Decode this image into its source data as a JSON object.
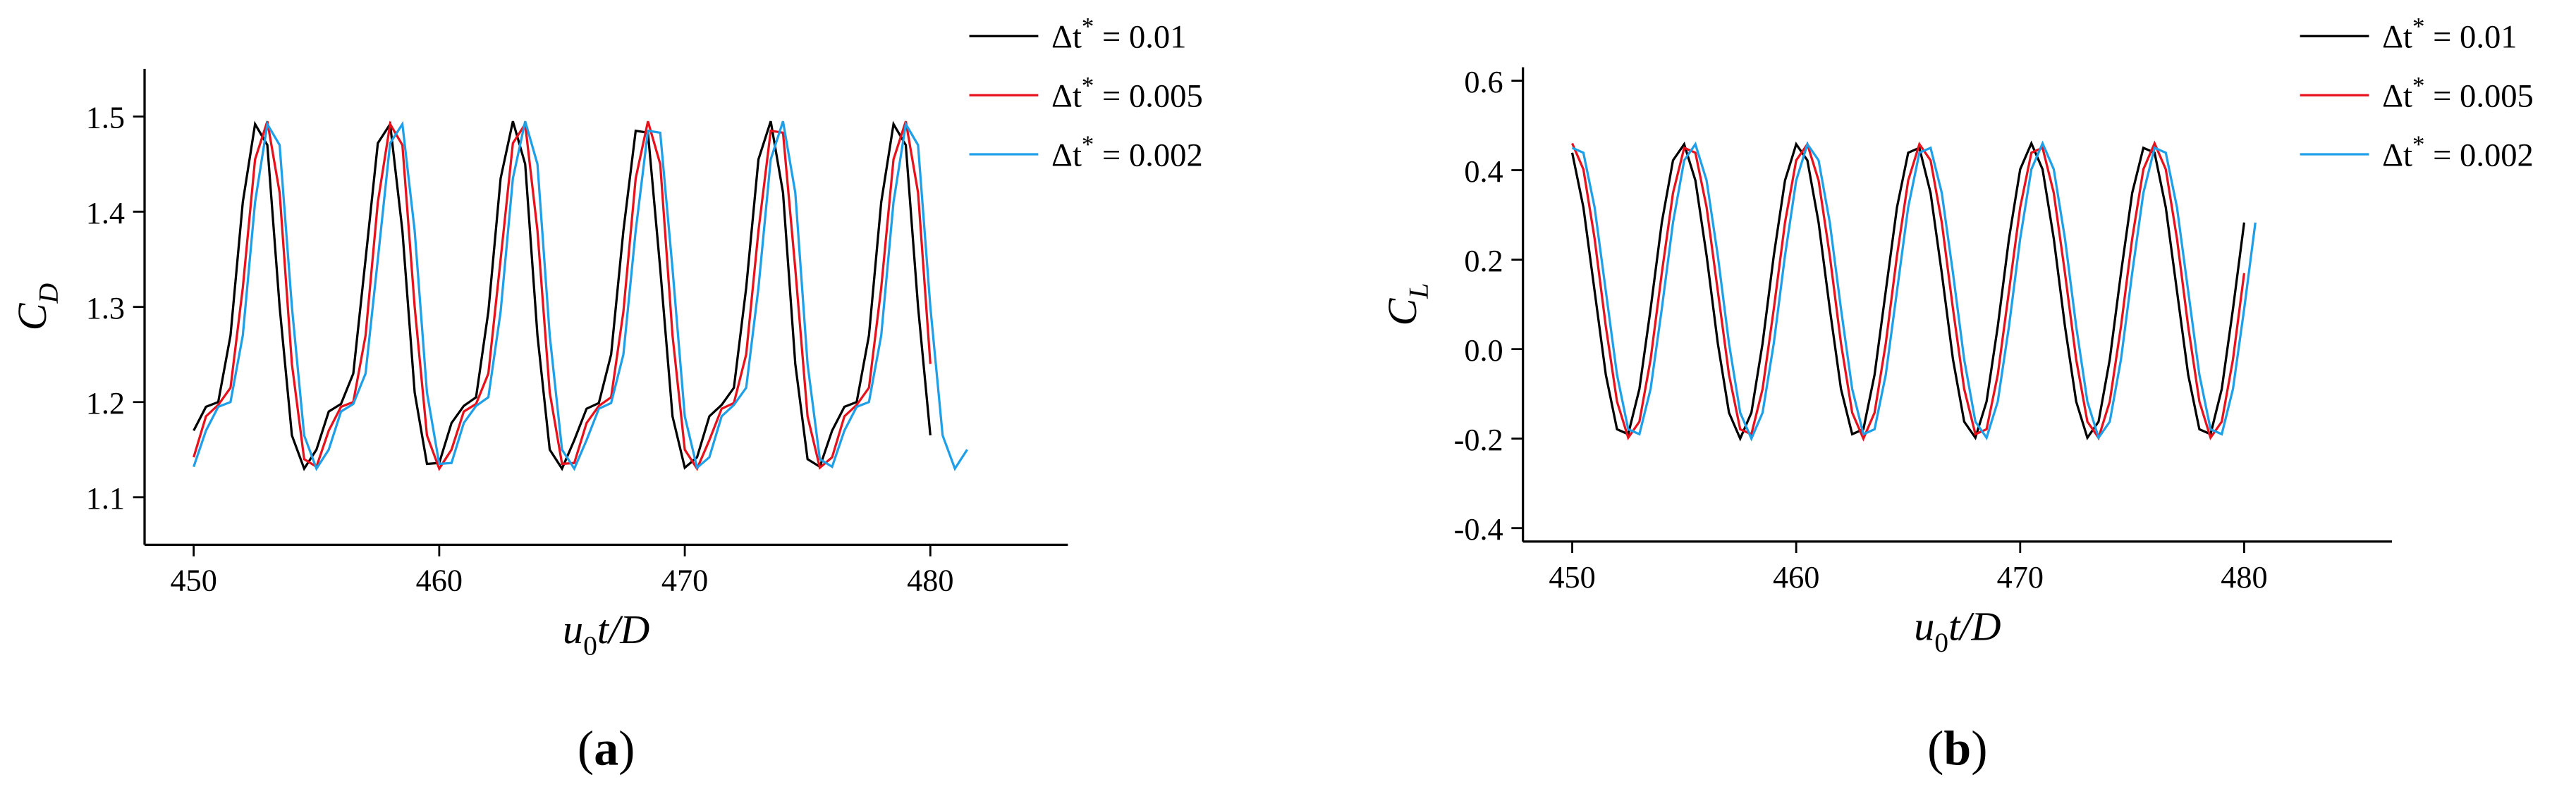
{
  "chart_data": [
    {
      "type": "line",
      "panel_label": "(a)",
      "xlabel": {
        "symbol": "u",
        "subscript": "0",
        "rest": "t/D"
      },
      "ylabel": {
        "symbol": "C",
        "subscript": "D"
      },
      "xlim": [
        448,
        485.6
      ],
      "ylim": [
        1.05,
        1.55
      ],
      "xticks": [
        450,
        460,
        470,
        480
      ],
      "yticks": [
        1.1,
        1.2,
        1.3,
        1.4,
        1.5
      ],
      "legend_position": "upper right",
      "x": [
        450,
        450.5,
        451,
        451.5,
        452,
        452.5,
        453,
        453.5,
        454,
        454.5,
        455,
        455.5,
        456,
        456.5,
        457,
        457.5,
        458,
        458.5,
        459,
        459.5,
        460,
        460.5,
        461,
        461.5,
        462,
        462.5,
        463,
        463.5,
        464,
        464.5,
        465,
        465.5,
        466,
        466.5,
        467,
        467.5,
        468,
        468.5,
        469,
        469.5,
        470,
        470.5,
        471,
        471.5,
        472,
        472.5,
        473,
        473.5,
        474,
        474.5,
        475,
        475.5,
        476,
        476.5,
        477,
        477.5,
        478,
        478.5,
        479,
        479.5,
        480,
        480.5,
        481,
        481.5
      ],
      "series": [
        {
          "name": "Δt* = 0.01",
          "color": "#000000",
          "values": [
            1.17,
            1.195,
            1.2,
            1.27,
            1.41,
            1.492,
            1.47,
            1.3,
            1.165,
            1.13,
            1.15,
            1.19,
            1.198,
            1.23,
            1.35,
            1.472,
            1.492,
            1.38,
            1.21,
            1.135,
            1.136,
            1.178,
            1.196,
            1.205,
            1.295,
            1.435,
            1.495,
            1.45,
            1.27,
            1.15,
            1.13,
            1.16,
            1.193,
            1.199,
            1.25,
            1.38,
            1.485,
            1.483,
            1.34,
            1.185,
            1.131,
            1.142,
            1.185,
            1.197,
            1.215,
            1.32,
            1.455,
            1.495,
            1.42,
            1.24,
            1.14,
            1.132,
            1.17,
            1.195,
            1.2,
            1.27,
            1.41,
            1.492,
            1.47,
            1.3,
            1.165,
            null,
            null,
            null
          ]
        },
        {
          "name": "Δt* = 0.005",
          "color": "#e8101a",
          "values": [
            1.142,
            1.185,
            1.197,
            1.215,
            1.32,
            1.455,
            1.495,
            1.42,
            1.24,
            1.14,
            1.132,
            1.17,
            1.195,
            1.2,
            1.27,
            1.41,
            1.492,
            1.47,
            1.3,
            1.165,
            1.13,
            1.15,
            1.19,
            1.198,
            1.23,
            1.35,
            1.472,
            1.492,
            1.38,
            1.21,
            1.135,
            1.136,
            1.178,
            1.196,
            1.205,
            1.295,
            1.435,
            1.495,
            1.45,
            1.27,
            1.15,
            1.13,
            1.16,
            1.193,
            1.199,
            1.25,
            1.38,
            1.485,
            1.483,
            1.34,
            1.185,
            1.131,
            1.142,
            1.185,
            1.197,
            1.215,
            1.32,
            1.455,
            1.495,
            1.42,
            1.24,
            null,
            null,
            null
          ]
        },
        {
          "name": "Δt* = 0.002",
          "color": "#1e9fe8",
          "values": [
            1.132,
            1.17,
            1.195,
            1.2,
            1.27,
            1.41,
            1.492,
            1.47,
            1.3,
            1.165,
            1.13,
            1.15,
            1.19,
            1.198,
            1.23,
            1.35,
            1.472,
            1.492,
            1.38,
            1.21,
            1.135,
            1.136,
            1.178,
            1.196,
            1.205,
            1.295,
            1.435,
            1.495,
            1.45,
            1.27,
            1.15,
            1.13,
            1.16,
            1.193,
            1.199,
            1.25,
            1.38,
            1.485,
            1.483,
            1.34,
            1.185,
            1.131,
            1.142,
            1.185,
            1.197,
            1.215,
            1.32,
            1.455,
            1.495,
            1.42,
            1.24,
            1.14,
            1.132,
            1.17,
            1.195,
            1.2,
            1.27,
            1.41,
            1.492,
            1.47,
            1.3,
            1.165,
            1.13,
            1.15
          ]
        }
      ]
    },
    {
      "type": "line",
      "panel_label": "(b)",
      "xlabel": {
        "symbol": "u",
        "subscript": "0",
        "rest": "t/D"
      },
      "ylabel": {
        "symbol": "C",
        "subscript": "L"
      },
      "xlim": [
        447.8,
        486.6
      ],
      "ylim": [
        -0.43,
        0.63
      ],
      "xticks": [
        450,
        460,
        470,
        480
      ],
      "yticks": [
        -0.4,
        -0.2,
        {
          "value": 0,
          "label": "0.0"
        },
        0.2,
        0.4,
        0.6
      ],
      "legend_position": "upper right",
      "x": [
        450,
        450.5,
        451,
        451.5,
        452,
        452.5,
        453,
        453.5,
        454,
        454.5,
        455,
        455.5,
        456,
        456.5,
        457,
        457.5,
        458,
        458.5,
        459,
        459.5,
        460,
        460.5,
        461,
        461.5,
        462,
        462.5,
        463,
        463.5,
        464,
        464.5,
        465,
        465.5,
        466,
        466.5,
        467,
        467.5,
        468,
        468.5,
        469,
        469.5,
        470,
        470.5,
        471,
        471.5,
        472,
        472.5,
        473,
        473.5,
        474,
        474.5,
        475,
        475.5,
        476,
        476.5,
        477,
        477.5,
        478,
        478.5,
        479,
        479.5,
        480,
        480.5
      ],
      "series": [
        {
          "name": "Δt* = 0.01",
          "color": "#000000",
          "values": [
            0.439,
            0.317,
            0.13,
            -0.057,
            -0.179,
            -0.19,
            -0.089,
            0.09,
            0.283,
            0.422,
            0.458,
            0.377,
            0.209,
            0.013,
            -0.142,
            -0.2,
            -0.142,
            0.013,
            0.209,
            0.377,
            0.458,
            0.422,
            0.283,
            0.09,
            -0.089,
            -0.19,
            -0.179,
            -0.057,
            0.13,
            0.317,
            0.439,
            0.45,
            0.349,
            0.17,
            -0.023,
            -0.162,
            -0.198,
            -0.117,
            0.051,
            0.247,
            0.402,
            0.46,
            0.402,
            0.247,
            0.051,
            -0.117,
            -0.198,
            -0.162,
            -0.023,
            0.17,
            0.349,
            0.45,
            0.439,
            0.317,
            0.13,
            -0.057,
            -0.179,
            -0.19,
            -0.089,
            0.09,
            0.283,
            null
          ]
        },
        {
          "name": "Δt* = 0.005",
          "color": "#e8101a",
          "values": [
            0.46,
            0.402,
            0.247,
            0.051,
            -0.117,
            -0.198,
            -0.162,
            -0.023,
            0.17,
            0.349,
            0.45,
            0.439,
            0.317,
            0.13,
            -0.057,
            -0.179,
            -0.19,
            -0.089,
            0.09,
            0.283,
            0.422,
            0.458,
            0.377,
            0.209,
            0.013,
            -0.142,
            -0.2,
            -0.142,
            0.013,
            0.209,
            0.377,
            0.458,
            0.422,
            0.283,
            0.09,
            -0.089,
            -0.19,
            -0.179,
            -0.057,
            0.13,
            0.317,
            0.439,
            0.45,
            0.349,
            0.17,
            -0.023,
            -0.162,
            -0.198,
            -0.117,
            0.051,
            0.247,
            0.402,
            0.46,
            0.402,
            0.247,
            0.051,
            -0.117,
            -0.198,
            -0.162,
            -0.023,
            0.17,
            null
          ]
        },
        {
          "name": "Δt* = 0.002",
          "color": "#1e9fe8",
          "values": [
            0.45,
            0.439,
            0.317,
            0.13,
            -0.057,
            -0.179,
            -0.19,
            -0.089,
            0.09,
            0.283,
            0.422,
            0.458,
            0.377,
            0.209,
            0.013,
            -0.142,
            -0.2,
            -0.142,
            0.013,
            0.209,
            0.377,
            0.458,
            0.422,
            0.283,
            0.09,
            -0.089,
            -0.19,
            -0.179,
            -0.057,
            0.13,
            0.317,
            0.439,
            0.45,
            0.349,
            0.17,
            -0.023,
            -0.162,
            -0.198,
            -0.117,
            0.051,
            0.247,
            0.402,
            0.46,
            0.402,
            0.247,
            0.051,
            -0.117,
            -0.198,
            -0.162,
            -0.023,
            0.17,
            0.349,
            0.45,
            0.439,
            0.317,
            0.13,
            -0.057,
            -0.179,
            -0.19,
            -0.089,
            0.09,
            0.283
          ]
        }
      ]
    }
  ]
}
